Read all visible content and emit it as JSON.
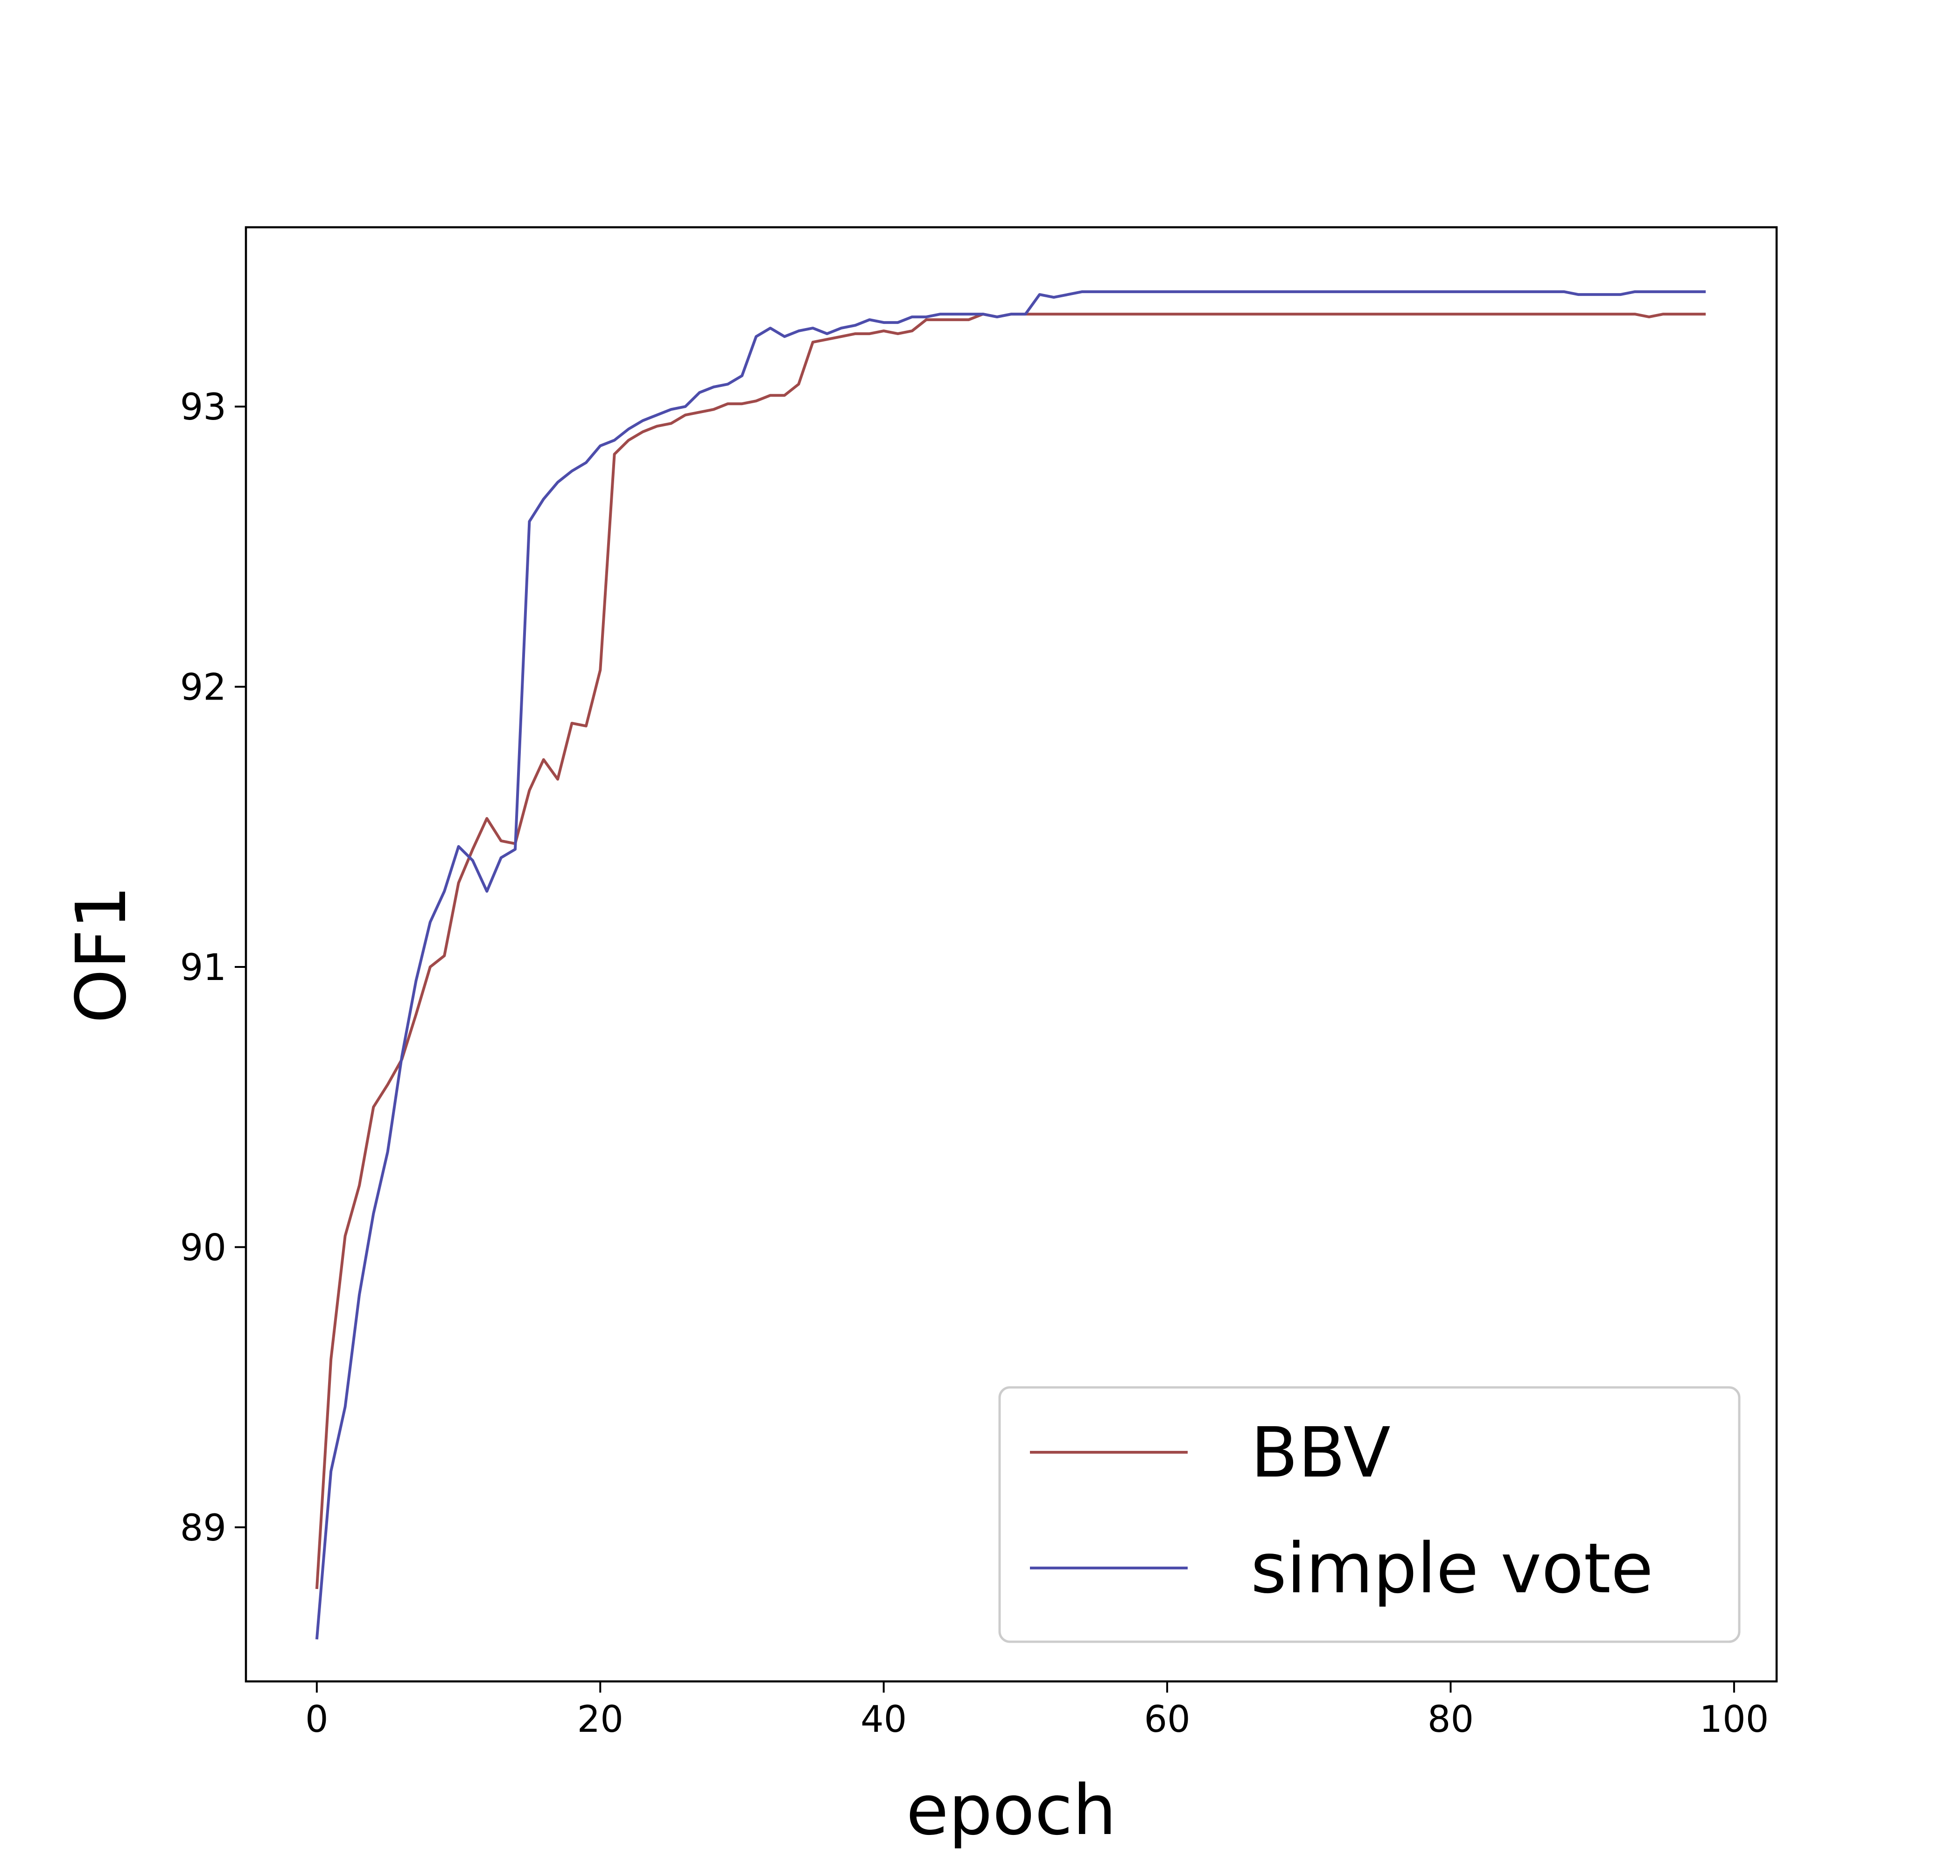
{
  "chart_data": {
    "type": "line",
    "title": "",
    "xlabel": "epoch",
    "ylabel": "OF1",
    "xlim": [
      -5,
      103
    ],
    "ylim": [
      88.45,
      93.64
    ],
    "xticks": [
      0,
      20,
      40,
      60,
      80,
      100
    ],
    "xtick_labels": [
      "0",
      "20",
      "40",
      "60",
      "80",
      "100"
    ],
    "yticks": [
      89,
      90,
      91,
      92,
      93
    ],
    "ytick_labels": [
      "89",
      "90",
      "91",
      "92",
      "93"
    ],
    "grid": false,
    "legend_position": "lower-right",
    "series": [
      {
        "name": "BBV",
        "color": "#a04a4a",
        "x": [
          0,
          1,
          2,
          3,
          4,
          5,
          6,
          7,
          8,
          9,
          10,
          11,
          12,
          13,
          14,
          15,
          16,
          17,
          18,
          19,
          20,
          21,
          22,
          23,
          24,
          25,
          26,
          27,
          28,
          29,
          30,
          31,
          32,
          33,
          34,
          35,
          36,
          37,
          38,
          39,
          40,
          41,
          42,
          43,
          44,
          45,
          46,
          47,
          48,
          49,
          50,
          51,
          52,
          53,
          54,
          55,
          56,
          57,
          58,
          59,
          60,
          61,
          62,
          63,
          64,
          65,
          66,
          67,
          68,
          69,
          70,
          71,
          72,
          73,
          74,
          75,
          76,
          77,
          78,
          79,
          80,
          81,
          82,
          83,
          84,
          85,
          86,
          87,
          88,
          89,
          90,
          91,
          92,
          93,
          94,
          95,
          96,
          97,
          98
        ],
        "y": [
          88.78,
          89.6,
          90.04,
          90.22,
          90.5,
          90.58,
          90.67,
          90.83,
          91.0,
          91.04,
          91.3,
          91.42,
          91.53,
          91.45,
          91.44,
          91.63,
          91.74,
          91.67,
          91.87,
          91.86,
          92.06,
          92.83,
          92.88,
          92.91,
          92.93,
          92.94,
          92.97,
          92.98,
          92.99,
          93.01,
          93.01,
          93.02,
          93.04,
          93.04,
          93.08,
          93.23,
          93.24,
          93.25,
          93.26,
          93.26,
          93.27,
          93.26,
          93.27,
          93.31,
          93.31,
          93.31,
          93.31,
          93.33,
          93.32,
          93.33,
          93.33,
          93.33,
          93.33,
          93.33,
          93.33,
          93.33,
          93.33,
          93.33,
          93.33,
          93.33,
          93.33,
          93.33,
          93.33,
          93.33,
          93.33,
          93.33,
          93.33,
          93.33,
          93.33,
          93.33,
          93.33,
          93.33,
          93.33,
          93.33,
          93.33,
          93.33,
          93.33,
          93.33,
          93.33,
          93.33,
          93.33,
          93.33,
          93.33,
          93.33,
          93.33,
          93.33,
          93.33,
          93.33,
          93.33,
          93.33,
          93.33,
          93.33,
          93.33,
          93.33,
          93.32,
          93.33,
          93.33,
          93.33,
          93.33
        ]
      },
      {
        "name": "simple vote",
        "color": "#4d4dab",
        "x": [
          0,
          1,
          2,
          3,
          4,
          5,
          6,
          7,
          8,
          9,
          10,
          11,
          12,
          13,
          14,
          15,
          16,
          17,
          18,
          19,
          20,
          21,
          22,
          23,
          24,
          25,
          26,
          27,
          28,
          29,
          30,
          31,
          32,
          33,
          34,
          35,
          36,
          37,
          38,
          39,
          40,
          41,
          42,
          43,
          44,
          45,
          46,
          47,
          48,
          49,
          50,
          51,
          52,
          53,
          54,
          55,
          56,
          57,
          58,
          59,
          60,
          61,
          62,
          63,
          64,
          65,
          66,
          67,
          68,
          69,
          70,
          71,
          72,
          73,
          74,
          75,
          76,
          77,
          78,
          79,
          80,
          81,
          82,
          83,
          84,
          85,
          86,
          87,
          88,
          89,
          90,
          91,
          92,
          93,
          94,
          95,
          96,
          97,
          98
        ],
        "y": [
          88.6,
          89.2,
          89.43,
          89.83,
          90.12,
          90.34,
          90.68,
          90.95,
          91.16,
          91.27,
          91.43,
          91.38,
          91.27,
          91.39,
          91.42,
          92.59,
          92.67,
          92.73,
          92.77,
          92.8,
          92.86,
          92.88,
          92.92,
          92.95,
          92.97,
          92.99,
          93.0,
          93.05,
          93.07,
          93.08,
          93.11,
          93.25,
          93.28,
          93.25,
          93.27,
          93.28,
          93.26,
          93.28,
          93.29,
          93.31,
          93.3,
          93.3,
          93.32,
          93.32,
          93.33,
          93.33,
          93.33,
          93.33,
          93.32,
          93.33,
          93.33,
          93.4,
          93.39,
          93.4,
          93.41,
          93.41,
          93.41,
          93.41,
          93.41,
          93.41,
          93.41,
          93.41,
          93.41,
          93.41,
          93.41,
          93.41,
          93.41,
          93.41,
          93.41,
          93.41,
          93.41,
          93.41,
          93.41,
          93.41,
          93.41,
          93.41,
          93.41,
          93.41,
          93.41,
          93.41,
          93.41,
          93.41,
          93.41,
          93.41,
          93.41,
          93.41,
          93.41,
          93.41,
          93.41,
          93.4,
          93.4,
          93.4,
          93.4,
          93.41,
          93.41,
          93.41,
          93.41,
          93.41,
          93.41
        ]
      }
    ]
  }
}
